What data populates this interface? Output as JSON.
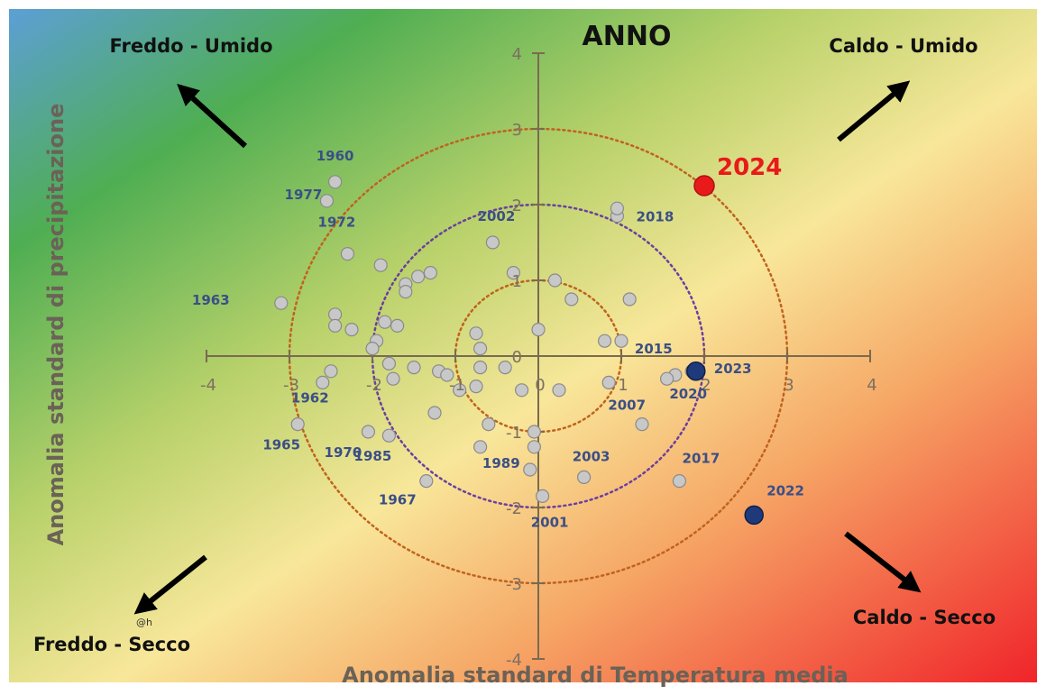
{
  "chart_data": {
    "type": "scatter",
    "title": "ANNO",
    "xlabel": "Anomalia standard di Temperatura media",
    "ylabel": "Anomalia standard di precipitazione",
    "xlim": [
      -4,
      4
    ],
    "ylim": [
      -4,
      4
    ],
    "x_ticks": [
      "-4",
      "-3",
      "-2",
      "-1",
      "0",
      "1",
      "2",
      "3",
      "4"
    ],
    "y_ticks": [
      "4",
      "3",
      "2",
      "1",
      "0",
      "-1",
      "-2",
      "-3",
      "-4"
    ],
    "grid": false,
    "reference_circles_radius": [
      1,
      2,
      3
    ],
    "quadrant_labels": {
      "top_left": "Freddo - Umido",
      "top_right": "Caldo - Umido",
      "bottom_left": "Freddo - Secco",
      "bottom_right": "Caldo - Secco"
    },
    "watermark": "@h",
    "colors": {
      "point": "#c8c8c8",
      "point_stroke": "#8a8a8a",
      "highlight_recent": "#1f3a7a",
      "highlight_2024": "#e81a1a",
      "year_label": "#3b4f86",
      "axis": "#7a6a50",
      "circle_inner": "#c0621f",
      "circle_middle": "#6a3fa0",
      "circle_outer": "#c0621f"
    },
    "points": [
      {
        "year": "1960",
        "x": -2.45,
        "y": 2.3,
        "label": "1960"
      },
      {
        "year": "1977",
        "x": -2.55,
        "y": 2.05,
        "label": "1977"
      },
      {
        "year": "1972",
        "x": -2.3,
        "y": 1.35,
        "label": "1972"
      },
      {
        "year": "1963",
        "x": -3.1,
        "y": 0.7,
        "label": "1963"
      },
      {
        "year": "1962",
        "x": -2.6,
        "y": -0.35,
        "label": "1962"
      },
      {
        "year": "1965",
        "x": -2.9,
        "y": -0.9,
        "label": "1965"
      },
      {
        "year": "1970",
        "x": -2.05,
        "y": -1.0,
        "label": "1970"
      },
      {
        "year": "1985",
        "x": -1.8,
        "y": -1.05,
        "label": "1985"
      },
      {
        "year": "1967",
        "x": -1.35,
        "y": -1.65,
        "label": "1967"
      },
      {
        "year": "2002",
        "x": -0.55,
        "y": 1.5,
        "label": "2002"
      },
      {
        "year": "2018",
        "x": 0.95,
        "y": 1.85,
        "label": "2018"
      },
      {
        "year": "2015",
        "x": 1.65,
        "y": -0.25,
        "label": "2015"
      },
      {
        "year": "2007",
        "x": 0.85,
        "y": -0.35,
        "label": "2007"
      },
      {
        "year": "2020",
        "x": 1.85,
        "y": -0.2,
        "label": "2020"
      },
      {
        "year": "2003",
        "x": 0.55,
        "y": -1.6,
        "label": "2003"
      },
      {
        "year": "2017",
        "x": 1.7,
        "y": -1.65,
        "label": "2017"
      },
      {
        "year": "1989",
        "x": -0.1,
        "y": -1.5,
        "label": "1989"
      },
      {
        "year": "2001",
        "x": 0.05,
        "y": -1.85,
        "label": "2001"
      },
      {
        "year": "",
        "x": -2.45,
        "y": 0.55
      },
      {
        "year": "",
        "x": -2.45,
        "y": 0.4
      },
      {
        "year": "",
        "x": -2.25,
        "y": 0.35
      },
      {
        "year": "",
        "x": -1.9,
        "y": 1.2
      },
      {
        "year": "",
        "x": -1.6,
        "y": 0.95
      },
      {
        "year": "",
        "x": -1.45,
        "y": 1.05
      },
      {
        "year": "",
        "x": -1.3,
        "y": 1.1
      },
      {
        "year": "",
        "x": -1.6,
        "y": 0.85
      },
      {
        "year": "",
        "x": -1.85,
        "y": 0.45
      },
      {
        "year": "",
        "x": -1.7,
        "y": 0.4
      },
      {
        "year": "",
        "x": -1.95,
        "y": 0.2
      },
      {
        "year": "",
        "x": -2.0,
        "y": 0.1
      },
      {
        "year": "",
        "x": -1.8,
        "y": -0.1
      },
      {
        "year": "",
        "x": -1.75,
        "y": -0.3
      },
      {
        "year": "",
        "x": -1.5,
        "y": -0.15
      },
      {
        "year": "",
        "x": -1.2,
        "y": -0.2
      },
      {
        "year": "",
        "x": -1.1,
        "y": -0.25
      },
      {
        "year": "",
        "x": -0.95,
        "y": -0.45
      },
      {
        "year": "",
        "x": -2.5,
        "y": -0.2
      },
      {
        "year": "",
        "x": -1.25,
        "y": -0.75
      },
      {
        "year": "",
        "x": -0.3,
        "y": 1.1
      },
      {
        "year": "",
        "x": 0.2,
        "y": 1.0
      },
      {
        "year": "",
        "x": 0.4,
        "y": 0.75
      },
      {
        "year": "",
        "x": 1.1,
        "y": 0.75
      },
      {
        "year": "",
        "x": 0.0,
        "y": 0.35
      },
      {
        "year": "",
        "x": -0.75,
        "y": 0.3
      },
      {
        "year": "",
        "x": -0.7,
        "y": 0.1
      },
      {
        "year": "",
        "x": -0.7,
        "y": -0.15
      },
      {
        "year": "",
        "x": -0.4,
        "y": -0.15
      },
      {
        "year": "",
        "x": -0.75,
        "y": -0.4
      },
      {
        "year": "",
        "x": -0.2,
        "y": -0.45
      },
      {
        "year": "",
        "x": 0.25,
        "y": -0.45
      },
      {
        "year": "",
        "x": 0.8,
        "y": 0.2
      },
      {
        "year": "",
        "x": 1.0,
        "y": 0.2
      },
      {
        "year": "",
        "x": -0.6,
        "y": -0.9
      },
      {
        "year": "",
        "x": -0.7,
        "y": -1.2
      },
      {
        "year": "",
        "x": -0.05,
        "y": -1.0
      },
      {
        "year": "",
        "x": -0.05,
        "y": -1.2
      },
      {
        "year": "",
        "x": 1.25,
        "y": -0.9
      },
      {
        "year": "",
        "x": 1.55,
        "y": -0.3
      },
      {
        "year": "",
        "x": 0.95,
        "y": 1.95
      }
    ],
    "highlight_points": [
      {
        "year": "2023",
        "x": 1.9,
        "y": -0.2,
        "label": "2023",
        "color": "#1f3a7a"
      },
      {
        "year": "2022",
        "x": 2.6,
        "y": -2.1,
        "label": "2022",
        "color": "#1f3a7a"
      },
      {
        "year": "2024",
        "x": 2.0,
        "y": 2.25,
        "label": "2024",
        "color": "#e81a1a"
      }
    ]
  }
}
